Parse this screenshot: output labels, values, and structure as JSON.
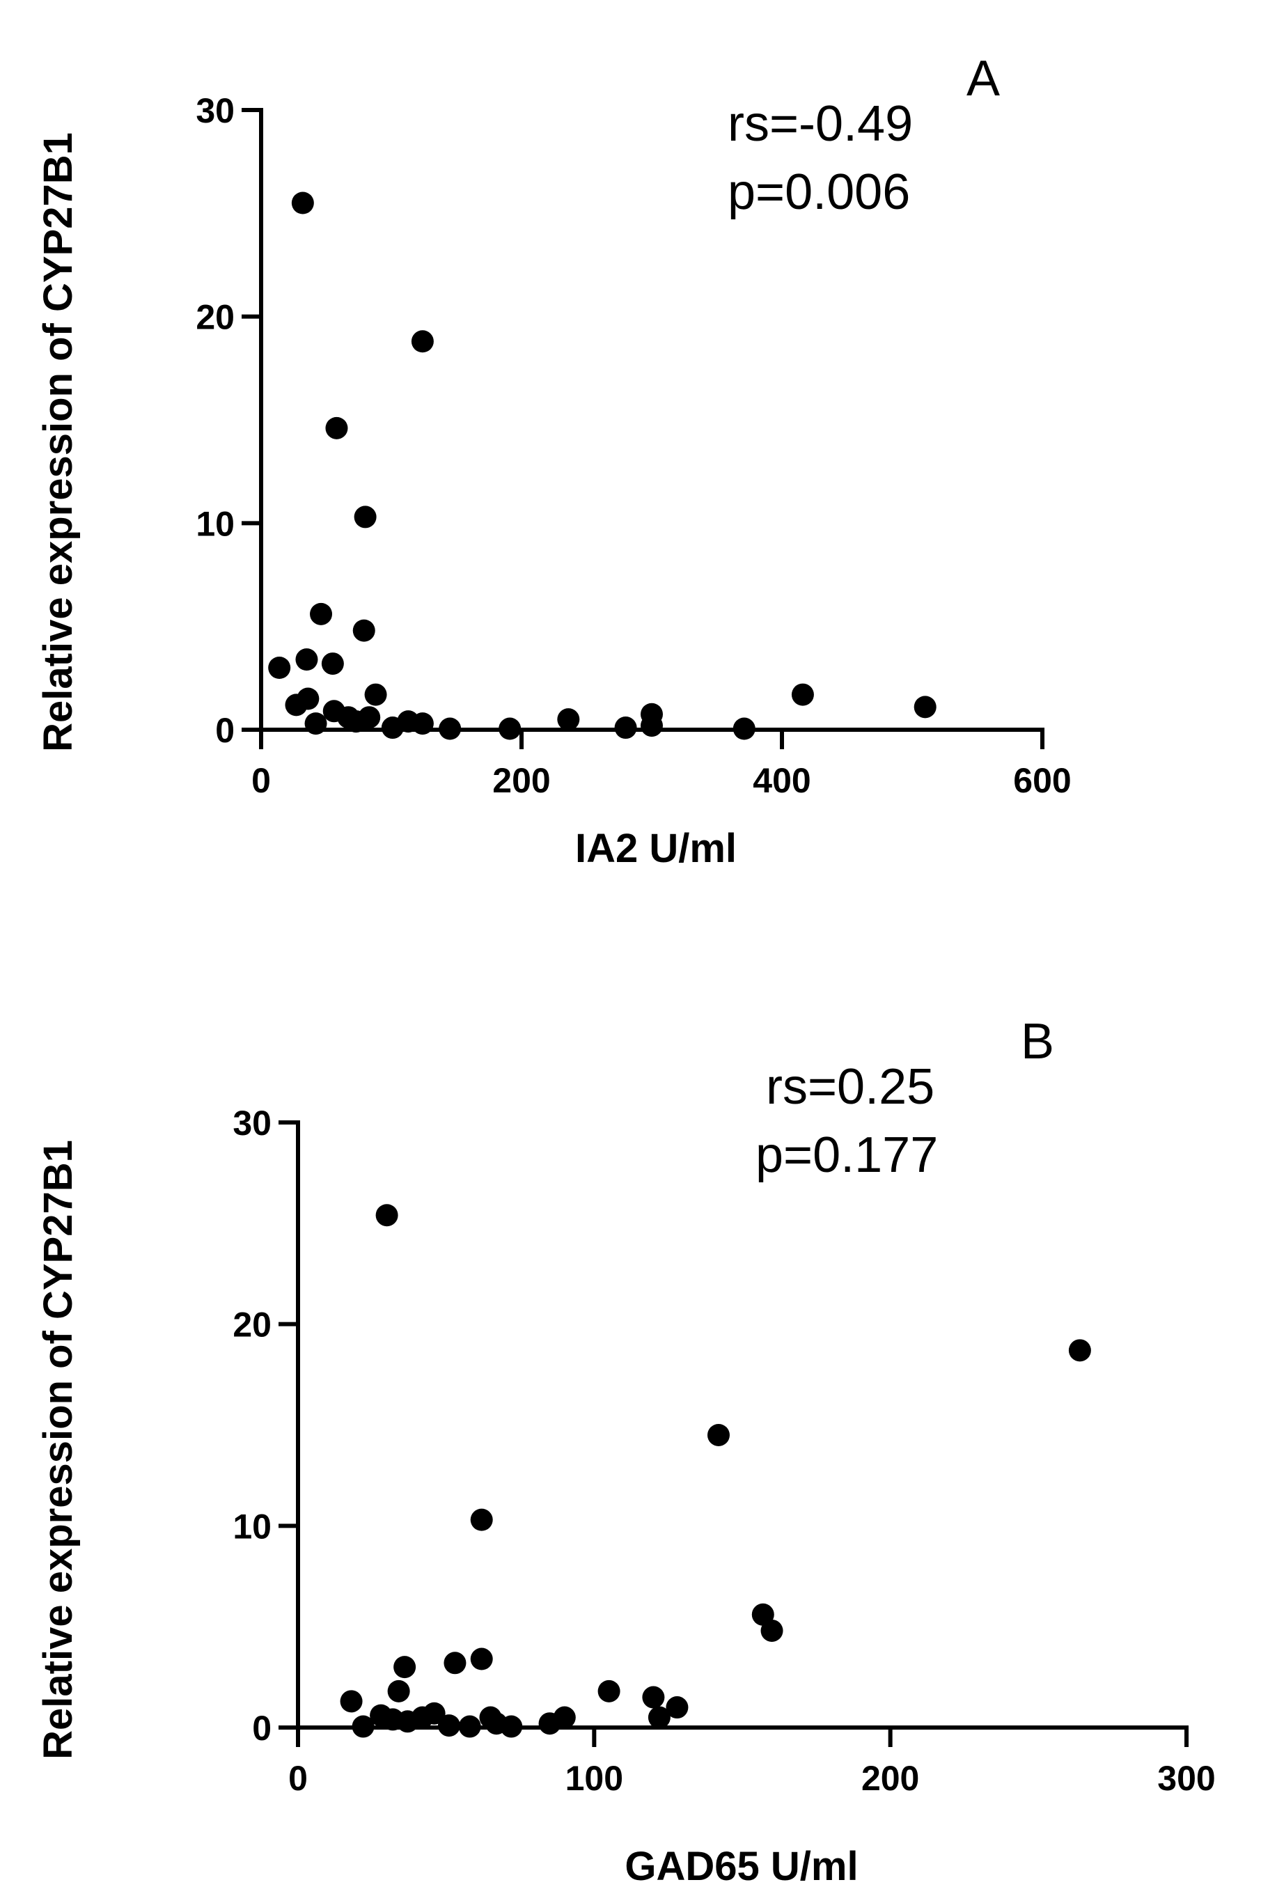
{
  "chart_data": [
    {
      "type": "scatter",
      "panel_label": "A",
      "xlabel": "IA2 U/ml",
      "ylabel": "Relative expression of CYP27B1",
      "xlim": [
        0,
        600
      ],
      "ylim": [
        0,
        30
      ],
      "xticks": [
        0,
        200,
        400,
        600
      ],
      "yticks": [
        0,
        10,
        20,
        30
      ],
      "annotations": [
        "rs=-0.49",
        "p=0.006"
      ],
      "points": [
        {
          "x": 32,
          "y": 25.5
        },
        {
          "x": 124,
          "y": 18.8
        },
        {
          "x": 58,
          "y": 14.6
        },
        {
          "x": 80,
          "y": 10.3
        },
        {
          "x": 46,
          "y": 5.6
        },
        {
          "x": 79,
          "y": 4.8
        },
        {
          "x": 14,
          "y": 3.0
        },
        {
          "x": 35,
          "y": 3.4
        },
        {
          "x": 55,
          "y": 3.2
        },
        {
          "x": 27,
          "y": 1.2
        },
        {
          "x": 36,
          "y": 1.5
        },
        {
          "x": 88,
          "y": 1.7
        },
        {
          "x": 56,
          "y": 0.9
        },
        {
          "x": 67,
          "y": 0.6
        },
        {
          "x": 73,
          "y": 0.4
        },
        {
          "x": 83,
          "y": 0.6
        },
        {
          "x": 42,
          "y": 0.3
        },
        {
          "x": 101,
          "y": 0.1
        },
        {
          "x": 113,
          "y": 0.4
        },
        {
          "x": 124,
          "y": 0.3
        },
        {
          "x": 145,
          "y": 0.05
        },
        {
          "x": 191,
          "y": 0.05
        },
        {
          "x": 236,
          "y": 0.5
        },
        {
          "x": 280,
          "y": 0.1
        },
        {
          "x": 300,
          "y": 0.75
        },
        {
          "x": 300,
          "y": 0.2
        },
        {
          "x": 371,
          "y": 0.05
        },
        {
          "x": 416,
          "y": 1.7
        },
        {
          "x": 510,
          "y": 1.1
        }
      ]
    },
    {
      "type": "scatter",
      "panel_label": "B",
      "xlabel": "GAD65 U/ml",
      "ylabel": "Relative expression of CYP27B1",
      "xlim": [
        0,
        300
      ],
      "ylim": [
        0,
        30
      ],
      "xticks": [
        0,
        100,
        200,
        300
      ],
      "yticks": [
        0,
        10,
        20,
        30
      ],
      "annotations": [
        "rs=0.25",
        "p=0.177"
      ],
      "points": [
        {
          "x": 30,
          "y": 25.4
        },
        {
          "x": 264,
          "y": 18.7
        },
        {
          "x": 142,
          "y": 14.5
        },
        {
          "x": 62,
          "y": 10.3
        },
        {
          "x": 157,
          "y": 5.6
        },
        {
          "x": 160,
          "y": 4.8
        },
        {
          "x": 36,
          "y": 3.0
        },
        {
          "x": 53,
          "y": 3.2
        },
        {
          "x": 62,
          "y": 3.4
        },
        {
          "x": 18,
          "y": 1.3
        },
        {
          "x": 34,
          "y": 1.8
        },
        {
          "x": 105,
          "y": 1.8
        },
        {
          "x": 120,
          "y": 1.5
        },
        {
          "x": 128,
          "y": 1.0
        },
        {
          "x": 122,
          "y": 0.5
        },
        {
          "x": 22,
          "y": 0.05
        },
        {
          "x": 28,
          "y": 0.6
        },
        {
          "x": 32,
          "y": 0.4
        },
        {
          "x": 37,
          "y": 0.3
        },
        {
          "x": 42,
          "y": 0.5
        },
        {
          "x": 46,
          "y": 0.7
        },
        {
          "x": 51,
          "y": 0.1
        },
        {
          "x": 58,
          "y": 0.05
        },
        {
          "x": 65,
          "y": 0.5
        },
        {
          "x": 67,
          "y": 0.2
        },
        {
          "x": 72,
          "y": 0.05
        },
        {
          "x": 85,
          "y": 0.2
        },
        {
          "x": 90,
          "y": 0.5
        }
      ]
    }
  ]
}
